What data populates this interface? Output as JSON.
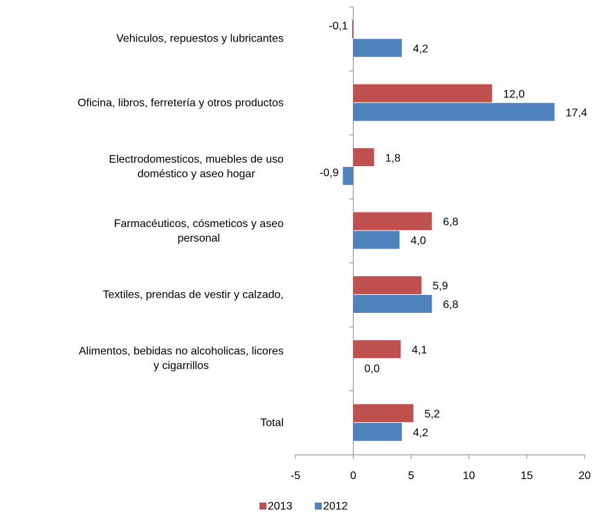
{
  "chart_data": {
    "type": "barh",
    "categories": [
      "Vehiculos, repuestos y lubricantes",
      "Oficina, libros, ferretería y otros productos",
      "Electrodomesticos, muebles de uso\ndoméstico y aseo hogar",
      "Farmacéuticos, cósmeticos y aseo\npersonal",
      "Textiles, prendas de vestir y calzado,",
      "Alimentos, bebidas no alcoholicas, licores\ny cigarrillos",
      "Total"
    ],
    "series": [
      {
        "name": "2013",
        "color": "#c0504d",
        "values": [
          -0.1,
          12.0,
          1.8,
          6.8,
          5.9,
          4.1,
          5.2
        ],
        "value_labels": [
          "-0,1",
          "12,0",
          "1,8",
          "6,8",
          "5,9",
          "4,1",
          "5,2"
        ]
      },
      {
        "name": "2012",
        "color": "#4f81bd",
        "values": [
          4.2,
          17.4,
          -0.9,
          4.0,
          6.8,
          0.0,
          4.2
        ],
        "value_labels": [
          "4,2",
          "17,4",
          "-0,9",
          "4,0",
          "6,8",
          "0,0",
          "4,2"
        ]
      }
    ],
    "xlim": [
      -5,
      20
    ],
    "xticks": [
      -5,
      0,
      5,
      10,
      15,
      20
    ],
    "legend": "bottom"
  }
}
